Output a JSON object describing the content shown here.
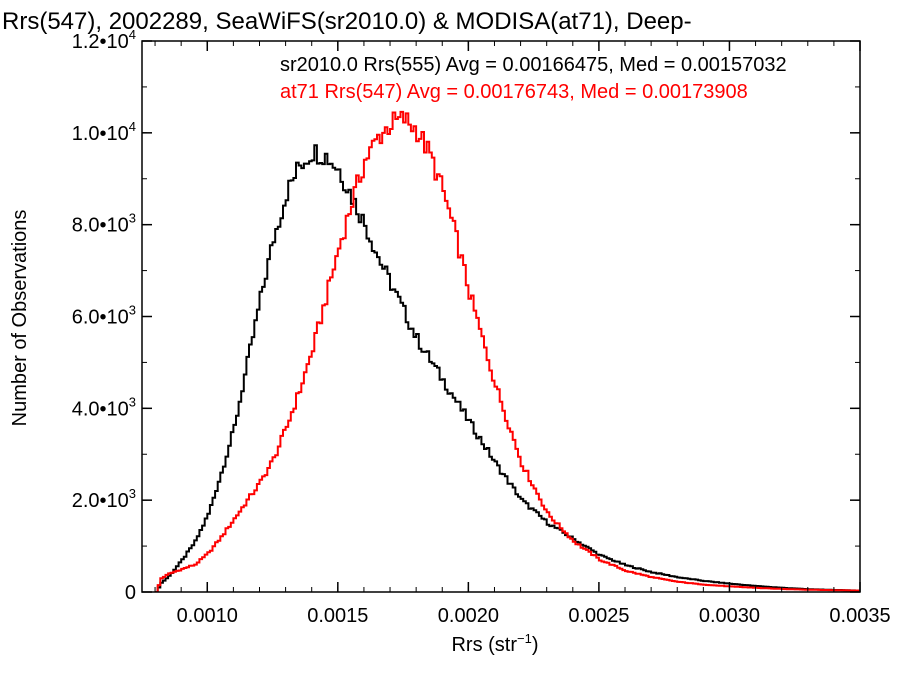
{
  "chart_data": {
    "type": "line",
    "title": "Rrs(547), 2002289, SeaWiFS(sr2010.0) & MODISA(at71), Deep-",
    "xlabel": "Rrs (str",
    "xlabel_exp": "−1",
    "xlabel_close": ")",
    "ylabel": "Number of Observations",
    "xlim": [
      0.00075,
      0.0035
    ],
    "ylim": [
      0,
      12000
    ],
    "x_ticks": [
      {
        "value": 0.001,
        "label": "0.0010"
      },
      {
        "value": 0.0015,
        "label": "0.0015"
      },
      {
        "value": 0.002,
        "label": "0.0020"
      },
      {
        "value": 0.0025,
        "label": "0.0025"
      },
      {
        "value": 0.003,
        "label": "0.0030"
      },
      {
        "value": 0.0035,
        "label": "0.0035"
      }
    ],
    "y_ticks": [
      {
        "value": 0,
        "mantissa": "0",
        "exp": ""
      },
      {
        "value": 2000,
        "mantissa": "2.0•10",
        "exp": "3"
      },
      {
        "value": 4000,
        "mantissa": "4.0•10",
        "exp": "3"
      },
      {
        "value": 6000,
        "mantissa": "6.0•10",
        "exp": "3"
      },
      {
        "value": 8000,
        "mantissa": "8.0•10",
        "exp": "3"
      },
      {
        "value": 10000,
        "mantissa": "1.0•10",
        "exp": "4"
      },
      {
        "value": 12000,
        "mantissa": "1.2•10",
        "exp": "4"
      }
    ],
    "grid": false,
    "series": [
      {
        "key": "sr2010",
        "label": "sr2010.0 Rrs(555) Avg = 0.00166475, Med = 0.00157032",
        "color": "#000000",
        "points": [
          [
            0.0008,
            0
          ],
          [
            0.00082,
            200
          ],
          [
            0.00085,
            350
          ],
          [
            0.0009,
            700
          ],
          [
            0.00095,
            1100
          ],
          [
            0.001,
            1700
          ],
          [
            0.00105,
            2600
          ],
          [
            0.0011,
            3600
          ],
          [
            0.00115,
            5000
          ],
          [
            0.0012,
            6400
          ],
          [
            0.00125,
            7700
          ],
          [
            0.0013,
            8700
          ],
          [
            0.00135,
            9300
          ],
          [
            0.0014,
            9600
          ],
          [
            0.00145,
            9500
          ],
          [
            0.0015,
            9200
          ],
          [
            0.00155,
            8600
          ],
          [
            0.0016,
            8000
          ],
          [
            0.00165,
            7300
          ],
          [
            0.0017,
            6700
          ],
          [
            0.00175,
            6100
          ],
          [
            0.0018,
            5500
          ],
          [
            0.0019,
            4600
          ],
          [
            0.002,
            3700
          ],
          [
            0.0021,
            2800
          ],
          [
            0.0022,
            2000
          ],
          [
            0.0023,
            1500
          ],
          [
            0.0024,
            1150
          ],
          [
            0.0025,
            800
          ],
          [
            0.0026,
            580
          ],
          [
            0.0027,
            430
          ],
          [
            0.0028,
            320
          ],
          [
            0.0029,
            240
          ],
          [
            0.003,
            180
          ],
          [
            0.0031,
            130
          ],
          [
            0.0032,
            90
          ],
          [
            0.0033,
            60
          ],
          [
            0.0034,
            45
          ],
          [
            0.0035,
            30
          ]
        ]
      },
      {
        "key": "at71",
        "label": "at71 Rrs(547) Avg = 0.00176743, Med = 0.00173908",
        "color": "#ff0000",
        "points": [
          [
            0.0008,
            0
          ],
          [
            0.00082,
            300
          ],
          [
            0.00085,
            400
          ],
          [
            0.0009,
            500
          ],
          [
            0.00095,
            600
          ],
          [
            0.001,
            850
          ],
          [
            0.00105,
            1200
          ],
          [
            0.0011,
            1600
          ],
          [
            0.00115,
            2000
          ],
          [
            0.0012,
            2400
          ],
          [
            0.00125,
            2900
          ],
          [
            0.0013,
            3600
          ],
          [
            0.00135,
            4400
          ],
          [
            0.0014,
            5300
          ],
          [
            0.00145,
            6400
          ],
          [
            0.0015,
            7500
          ],
          [
            0.00155,
            8500
          ],
          [
            0.0016,
            9400
          ],
          [
            0.00165,
            9900
          ],
          [
            0.0017,
            10200
          ],
          [
            0.00175,
            10300
          ],
          [
            0.0018,
            10050
          ],
          [
            0.00185,
            9500
          ],
          [
            0.0019,
            8700
          ],
          [
            0.00195,
            7700
          ],
          [
            0.002,
            6500
          ],
          [
            0.0021,
            4500
          ],
          [
            0.0022,
            2800
          ],
          [
            0.0023,
            1700
          ],
          [
            0.0024,
            1100
          ],
          [
            0.0025,
            700
          ],
          [
            0.0026,
            460
          ],
          [
            0.0027,
            320
          ],
          [
            0.0028,
            220
          ],
          [
            0.0029,
            160
          ],
          [
            0.003,
            120
          ],
          [
            0.0031,
            90
          ],
          [
            0.0032,
            65
          ],
          [
            0.0033,
            50
          ],
          [
            0.0034,
            40
          ],
          [
            0.0035,
            30
          ]
        ]
      }
    ]
  }
}
